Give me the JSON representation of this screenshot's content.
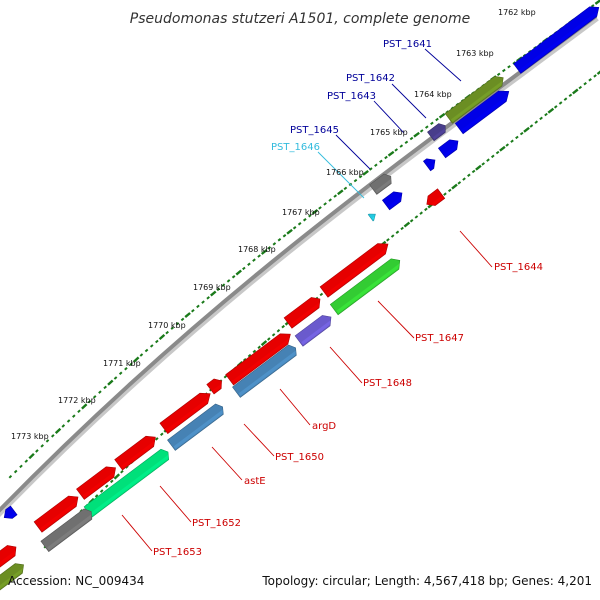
{
  "title": "Pseudomonas stutzeri A1501, complete genome",
  "footer": {
    "accession": "Accession: NC_009434",
    "topology": "Topology: circular; Length: 4,567,418 bp; Genes: 4,201"
  },
  "colors": {
    "blue": "#0000e6",
    "red": "#e60000",
    "green": "#33cc33",
    "olive": "#6b8e23",
    "steel": "#4682b4",
    "slate": "#6a5acd",
    "darkslate": "#483d8b",
    "gray": "#707070",
    "spring": "#00e07a",
    "cyan": "#22c8e0",
    "tick": "#1a7a1a",
    "label_red": "#cc0000",
    "label_blue": "#000099",
    "label_cyan": "#33bbdd"
  },
  "kbp_labels": [
    "1762 kbp",
    "1763 kbp",
    "1764 kbp",
    "1765 kbp",
    "1766 kbp",
    "1767 kbp",
    "1768 kbp",
    "1769 kbp",
    "1770 kbp",
    "1771 kbp",
    "1772 kbp",
    "1773 kbp"
  ],
  "gene_labels": [
    {
      "id": "g1641",
      "text": "PST_1641",
      "color": "label_blue"
    },
    {
      "id": "g1642",
      "text": "PST_1642",
      "color": "label_blue"
    },
    {
      "id": "g1643",
      "text": "PST_1643",
      "color": "label_blue"
    },
    {
      "id": "g1645",
      "text": "PST_1645",
      "color": "label_blue"
    },
    {
      "id": "g1646",
      "text": "PST_1646",
      "color": "label_cyan"
    },
    {
      "id": "g1644",
      "text": "PST_1644",
      "color": "label_red"
    },
    {
      "id": "g1647",
      "text": "PST_1647",
      "color": "label_red"
    },
    {
      "id": "g1648",
      "text": "PST_1648",
      "color": "label_red"
    },
    {
      "id": "gargD",
      "text": "argD",
      "color": "label_red"
    },
    {
      "id": "g1650",
      "text": "PST_1650",
      "color": "label_red"
    },
    {
      "id": "gastE",
      "text": "astE",
      "color": "label_red"
    },
    {
      "id": "g1652",
      "text": "PST_1652",
      "color": "label_red"
    },
    {
      "id": "g1653",
      "text": "PST_1653",
      "color": "label_red"
    }
  ]
}
